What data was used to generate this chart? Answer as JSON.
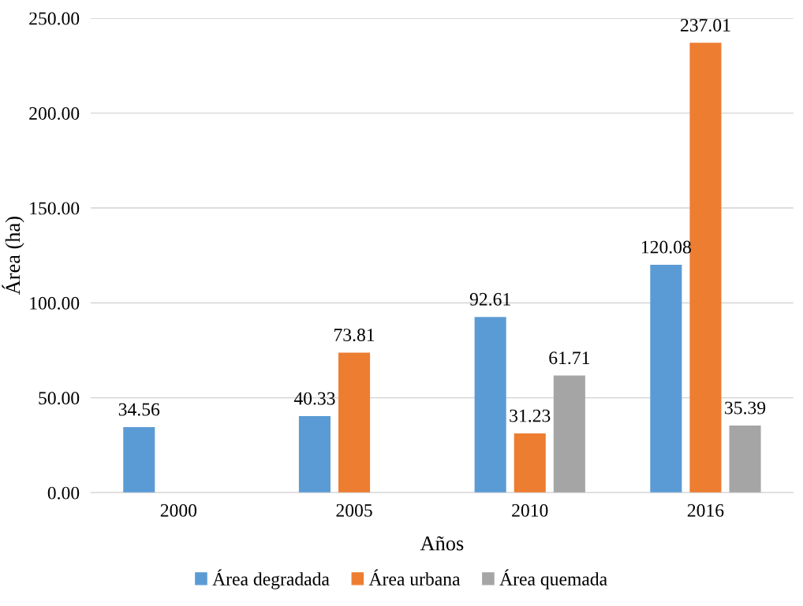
{
  "chart_data": {
    "type": "bar",
    "xlabel": "Años",
    "ylabel": "Área (ha)",
    "categories": [
      "2000",
      "2005",
      "2010",
      "2016"
    ],
    "series": [
      {
        "name": "Área degradada",
        "color": "#5b9bd5",
        "values": [
          34.56,
          40.33,
          92.61,
          120.08
        ]
      },
      {
        "name": "Área urbana",
        "color": "#ed7d31",
        "values": [
          null,
          73.81,
          31.23,
          237.01
        ]
      },
      {
        "name": "Área quemada",
        "color": "#a5a5a5",
        "values": [
          null,
          null,
          61.71,
          35.39
        ]
      }
    ],
    "ylim": [
      0,
      250
    ],
    "yticks": [
      {
        "value": 0,
        "label": "0.00"
      },
      {
        "value": 50,
        "label": "50.00"
      },
      {
        "value": 100,
        "label": "100.00"
      },
      {
        "value": 150,
        "label": "150.00"
      },
      {
        "value": 200,
        "label": "200.00"
      },
      {
        "value": 250,
        "label": "250.00"
      }
    ],
    "grid": "y",
    "legend": "bottom",
    "data_labels": true
  }
}
